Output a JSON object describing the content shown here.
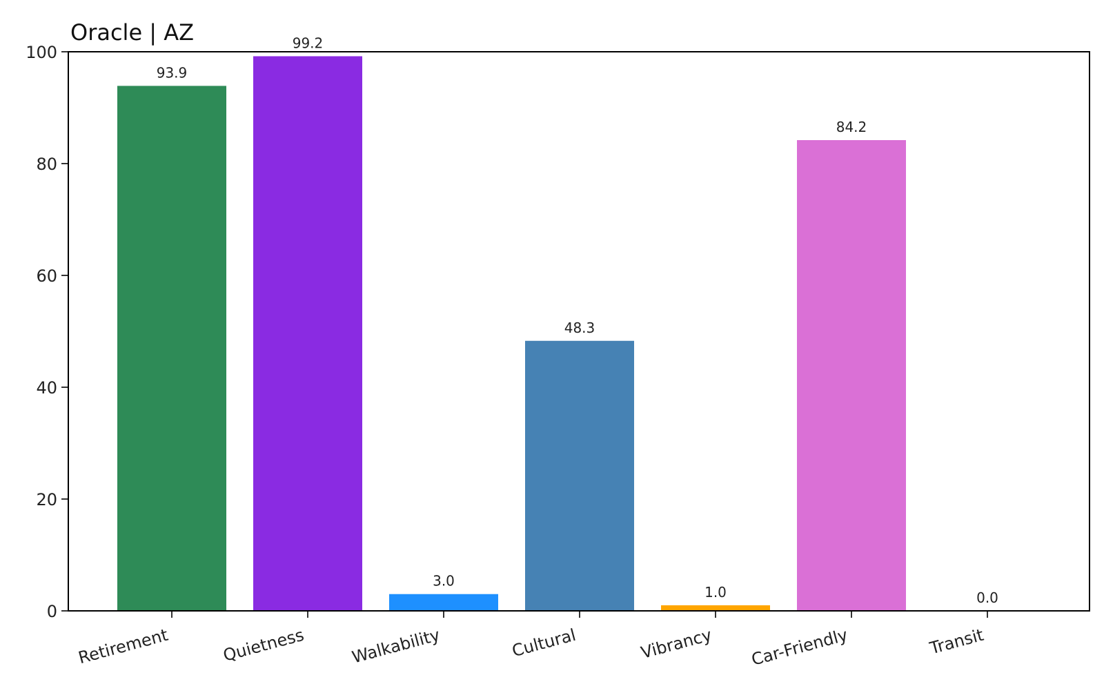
{
  "chart_data": {
    "type": "bar",
    "title": "Oracle | AZ",
    "xlabel": "",
    "ylabel": "",
    "categories": [
      "Retirement",
      "Quietness",
      "Walkability",
      "Cultural",
      "Vibrancy",
      "Car-Friendly",
      "Transit"
    ],
    "values": [
      93.9,
      99.2,
      3.0,
      48.3,
      1.0,
      84.2,
      0.0
    ],
    "value_labels": [
      "93.9",
      "99.2",
      "3.0",
      "48.3",
      "1.0",
      "84.2",
      "0.0"
    ],
    "colors": [
      "#2e8b57",
      "#8a2be2",
      "#1e90ff",
      "#4682b4",
      "#ffa500",
      "#da70d6",
      "#808080"
    ],
    "ylim": [
      0,
      100
    ],
    "yticks": [
      0,
      20,
      40,
      60,
      80,
      100
    ],
    "ytick_labels": [
      "0",
      "20",
      "40",
      "60",
      "80",
      "100"
    ],
    "grid": false,
    "legend": "none"
  }
}
